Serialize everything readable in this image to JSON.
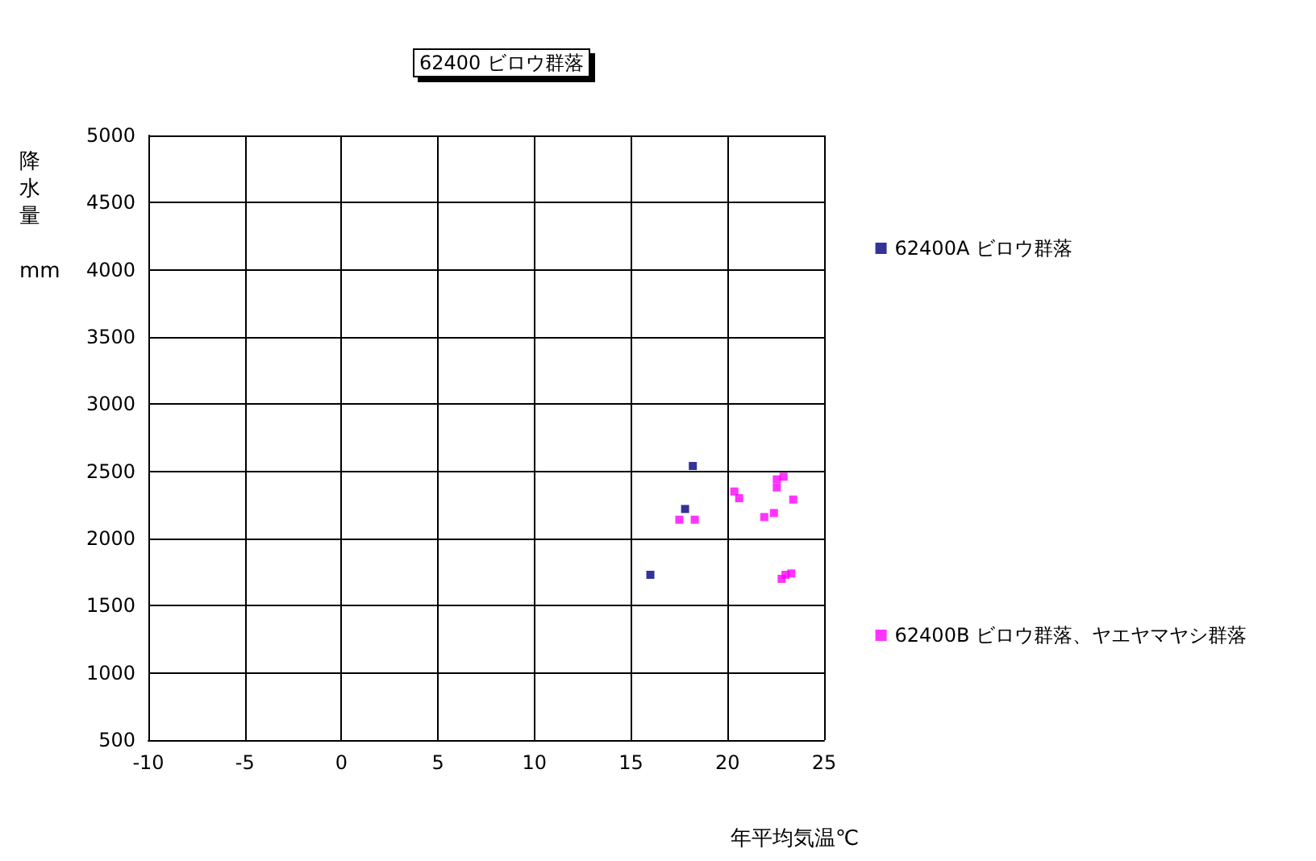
{
  "chart_data": {
    "type": "scatter",
    "title": "62400 ビロウ群落",
    "xlabel": "年平均気温℃",
    "ylabel": "降水量 mm",
    "xlim": [
      -10,
      25
    ],
    "xticks": [
      -10,
      -5,
      0,
      5,
      10,
      15,
      20,
      25
    ],
    "ylim": [
      500,
      5000
    ],
    "yticks": [
      500,
      1000,
      1500,
      2000,
      2500,
      3000,
      3500,
      4000,
      4500,
      5000
    ],
    "grid": true,
    "legend": "right",
    "marker": "square",
    "series": [
      {
        "name": "62400A ビロウ群落",
        "color": "#000080",
        "x": [
          18.2,
          17.8,
          16.0
        ],
        "values": [
          2540,
          2220,
          1730
        ]
      },
      {
        "name": "62400B ビロウ群落、ヤエヤマヤシ群落",
        "color": "#ff00ff",
        "x": [
          17.5,
          18.3,
          20.35,
          20.6,
          22.55,
          22.9,
          22.55,
          23.4,
          21.9,
          22.4,
          22.8,
          23.0,
          23.3
        ],
        "values": [
          2140,
          2140,
          2350,
          2300,
          2440,
          2460,
          2380,
          2290,
          2160,
          2190,
          1700,
          1730,
          1740
        ]
      }
    ]
  }
}
